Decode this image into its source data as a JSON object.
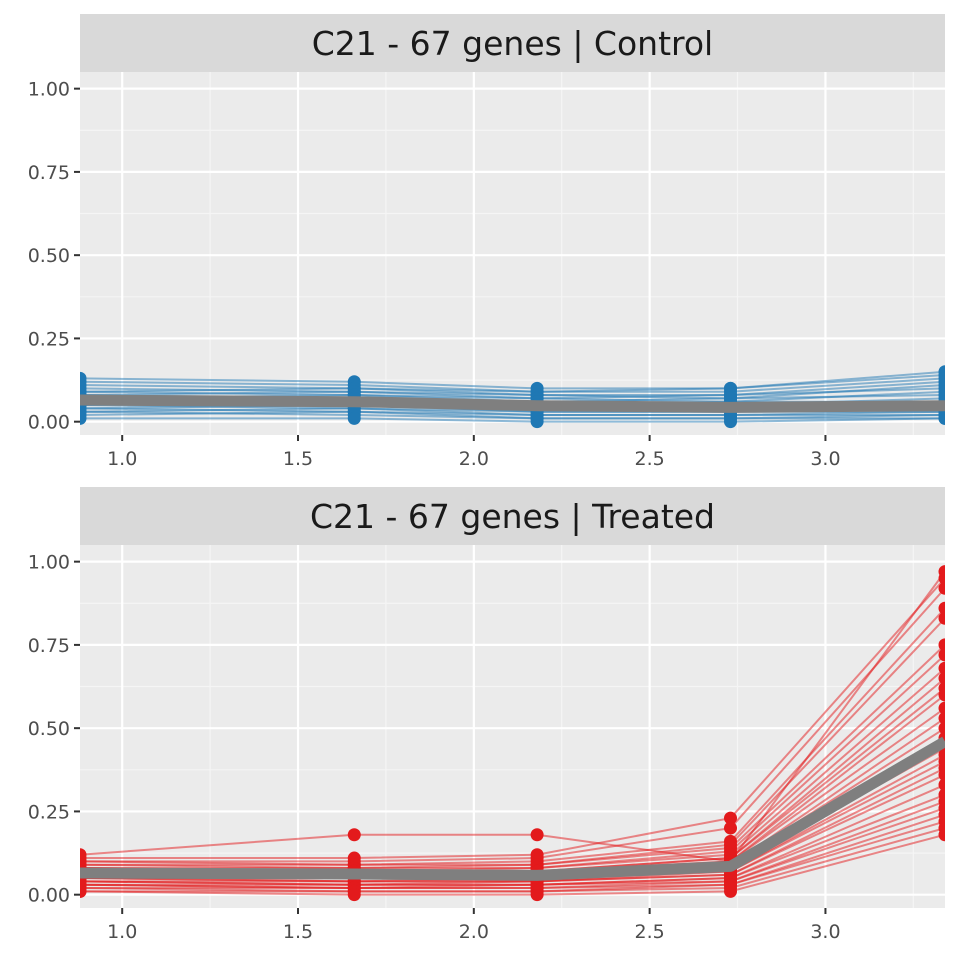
{
  "chart_data": [
    {
      "type": "line",
      "title": "C21 - 67 genes | Control",
      "xlabel": "",
      "ylabel": "",
      "xlim": [
        0.88,
        3.34
      ],
      "ylim": [
        -0.04,
        1.05
      ],
      "x_ticks": [
        "1.0",
        "1.5",
        "2.0",
        "2.5",
        "3.0"
      ],
      "y_ticks": [
        "0.00",
        "0.25",
        "0.50",
        "0.75",
        "1.00"
      ],
      "grid": true,
      "line_color": "#1f78b4",
      "summary_color": "#7f7f7f",
      "x": [
        0.88,
        1.66,
        2.18,
        2.73,
        3.34
      ],
      "gene_profiles": [
        [
          0.13,
          0.12,
          0.1,
          0.1,
          0.15
        ],
        [
          0.12,
          0.11,
          0.09,
          0.1,
          0.14
        ],
        [
          0.11,
          0.1,
          0.09,
          0.09,
          0.13
        ],
        [
          0.1,
          0.09,
          0.08,
          0.08,
          0.12
        ],
        [
          0.09,
          0.1,
          0.08,
          0.07,
          0.11
        ],
        [
          0.09,
          0.08,
          0.07,
          0.08,
          0.1
        ],
        [
          0.08,
          0.09,
          0.07,
          0.06,
          0.09
        ],
        [
          0.08,
          0.07,
          0.06,
          0.07,
          0.08
        ],
        [
          0.07,
          0.08,
          0.06,
          0.05,
          0.07
        ],
        [
          0.07,
          0.06,
          0.05,
          0.06,
          0.06
        ],
        [
          0.06,
          0.07,
          0.05,
          0.05,
          0.05
        ],
        [
          0.06,
          0.05,
          0.04,
          0.04,
          0.05
        ],
        [
          0.05,
          0.06,
          0.04,
          0.04,
          0.04
        ],
        [
          0.05,
          0.04,
          0.03,
          0.03,
          0.04
        ],
        [
          0.04,
          0.05,
          0.03,
          0.03,
          0.03
        ],
        [
          0.04,
          0.03,
          0.02,
          0.02,
          0.03
        ],
        [
          0.03,
          0.04,
          0.02,
          0.02,
          0.02
        ],
        [
          0.03,
          0.02,
          0.01,
          0.01,
          0.02
        ],
        [
          0.02,
          0.03,
          0.01,
          0.01,
          0.01
        ],
        [
          0.01,
          0.01,
          0.0,
          0.0,
          0.01
        ]
      ],
      "summary": [
        0.065,
        0.06,
        0.048,
        0.043,
        0.048
      ]
    },
    {
      "type": "line",
      "title": "C21 - 67 genes | Treated",
      "xlabel": "",
      "ylabel": "",
      "xlim": [
        0.88,
        3.34
      ],
      "ylim": [
        -0.04,
        1.05
      ],
      "x_ticks": [
        "1.0",
        "1.5",
        "2.0",
        "2.5",
        "3.0"
      ],
      "y_ticks": [
        "0.00",
        "0.25",
        "0.50",
        "0.75",
        "1.00"
      ],
      "grid": true,
      "line_color": "#e31a1c",
      "summary_color": "#7f7f7f",
      "x": [
        0.88,
        1.66,
        2.18,
        2.73,
        3.34
      ],
      "gene_profiles": [
        [
          0.12,
          0.18,
          0.18,
          0.1,
          0.97
        ],
        [
          0.11,
          0.11,
          0.12,
          0.23,
          0.95
        ],
        [
          0.1,
          0.1,
          0.11,
          0.2,
          0.92
        ],
        [
          0.1,
          0.09,
          0.1,
          0.16,
          0.86
        ],
        [
          0.09,
          0.09,
          0.09,
          0.15,
          0.83
        ],
        [
          0.09,
          0.08,
          0.09,
          0.14,
          0.75
        ],
        [
          0.08,
          0.08,
          0.08,
          0.13,
          0.72
        ],
        [
          0.08,
          0.07,
          0.08,
          0.12,
          0.68
        ],
        [
          0.08,
          0.07,
          0.07,
          0.11,
          0.65
        ],
        [
          0.07,
          0.07,
          0.07,
          0.11,
          0.62
        ],
        [
          0.07,
          0.06,
          0.07,
          0.1,
          0.6
        ],
        [
          0.07,
          0.06,
          0.06,
          0.1,
          0.56
        ],
        [
          0.06,
          0.06,
          0.06,
          0.09,
          0.53
        ],
        [
          0.06,
          0.05,
          0.06,
          0.09,
          0.5
        ],
        [
          0.06,
          0.05,
          0.05,
          0.08,
          0.47
        ],
        [
          0.05,
          0.05,
          0.05,
          0.08,
          0.44
        ],
        [
          0.05,
          0.04,
          0.05,
          0.07,
          0.42
        ],
        [
          0.05,
          0.04,
          0.04,
          0.07,
          0.4
        ],
        [
          0.04,
          0.04,
          0.04,
          0.06,
          0.38
        ],
        [
          0.04,
          0.03,
          0.04,
          0.06,
          0.36
        ],
        [
          0.04,
          0.03,
          0.03,
          0.05,
          0.33
        ],
        [
          0.03,
          0.03,
          0.03,
          0.05,
          0.3
        ],
        [
          0.03,
          0.02,
          0.03,
          0.04,
          0.28
        ],
        [
          0.03,
          0.02,
          0.02,
          0.04,
          0.26
        ],
        [
          0.02,
          0.02,
          0.02,
          0.03,
          0.24
        ],
        [
          0.02,
          0.01,
          0.01,
          0.03,
          0.22
        ],
        [
          0.01,
          0.01,
          0.01,
          0.02,
          0.2
        ],
        [
          0.01,
          0.0,
          0.0,
          0.01,
          0.18
        ]
      ],
      "summary": [
        0.065,
        0.062,
        0.058,
        0.085,
        0.46
      ]
    }
  ]
}
